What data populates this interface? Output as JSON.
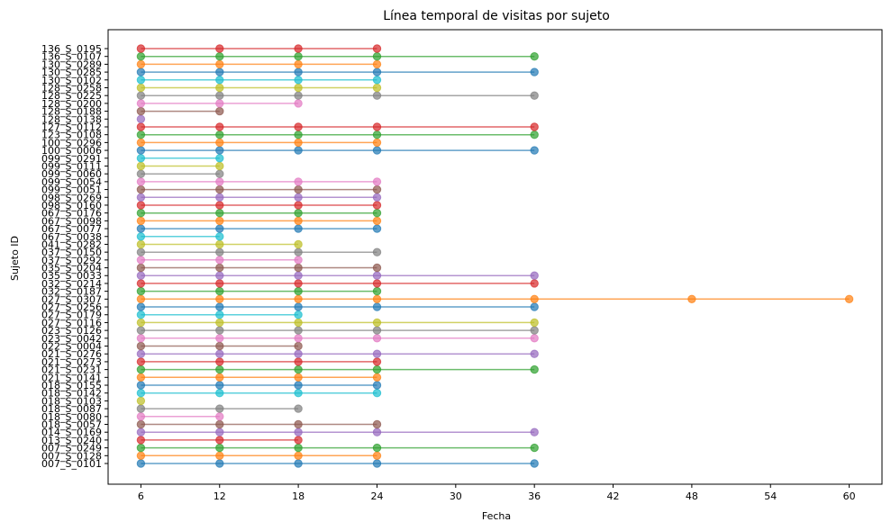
{
  "chart_data": {
    "type": "line",
    "title": "Línea temporal de visitas por sujeto",
    "xlabel": "Fecha",
    "ylabel": "Sujeto ID",
    "x_ticks": [
      6,
      12,
      18,
      24,
      30,
      36,
      42,
      48,
      54,
      60
    ],
    "xlim": [
      3.5,
      62.5
    ],
    "grid": false,
    "legend": "none",
    "colors": [
      "#1f77b4",
      "#ff7f0e",
      "#2ca02c",
      "#d62728",
      "#9467bd",
      "#8c564b",
      "#e377c2",
      "#7f7f7f",
      "#bcbd22",
      "#17becf"
    ],
    "subjects": [
      {
        "id": "007_S_0101",
        "visits": [
          6,
          12,
          18,
          24,
          36
        ]
      },
      {
        "id": "007_S_0128",
        "visits": [
          6,
          12,
          18,
          24
        ]
      },
      {
        "id": "007_S_0249",
        "visits": [
          6,
          12,
          18,
          24,
          36
        ]
      },
      {
        "id": "013_S_0240",
        "visits": [
          6,
          12,
          18
        ]
      },
      {
        "id": "014_S_0169",
        "visits": [
          6,
          12,
          18,
          24,
          36
        ]
      },
      {
        "id": "018_S_0057",
        "visits": [
          6,
          12,
          18,
          24
        ]
      },
      {
        "id": "018_S_0080",
        "visits": [
          6,
          12
        ]
      },
      {
        "id": "018_S_0087",
        "visits": [
          6,
          12,
          18
        ]
      },
      {
        "id": "018_S_0103",
        "visits": [
          6
        ]
      },
      {
        "id": "018_S_0142",
        "visits": [
          6,
          12,
          18,
          24
        ]
      },
      {
        "id": "018_S_0155",
        "visits": [
          6,
          12,
          18,
          24
        ]
      },
      {
        "id": "021_S_0141",
        "visits": [
          6,
          12,
          18,
          24
        ]
      },
      {
        "id": "021_S_0231",
        "visits": [
          6,
          12,
          18,
          24,
          36
        ]
      },
      {
        "id": "021_S_0273",
        "visits": [
          6,
          12,
          18,
          24
        ]
      },
      {
        "id": "021_S_0276",
        "visits": [
          6,
          12,
          18,
          24,
          36
        ]
      },
      {
        "id": "022_S_0004",
        "visits": [
          6,
          12,
          18
        ]
      },
      {
        "id": "023_S_0042",
        "visits": [
          6,
          12,
          18,
          24,
          36
        ]
      },
      {
        "id": "023_S_0126",
        "visits": [
          6,
          12,
          18,
          24,
          36
        ]
      },
      {
        "id": "027_S_0116",
        "visits": [
          6,
          12,
          18,
          24,
          36
        ]
      },
      {
        "id": "027_S_0179",
        "visits": [
          6,
          12,
          18
        ]
      },
      {
        "id": "027_S_0256",
        "visits": [
          6,
          12,
          18,
          24,
          36
        ]
      },
      {
        "id": "027_S_0307",
        "visits": [
          6,
          12,
          18,
          24,
          36,
          48,
          60
        ]
      },
      {
        "id": "032_S_0187",
        "visits": [
          6,
          12,
          18,
          24
        ]
      },
      {
        "id": "032_S_0214",
        "visits": [
          6,
          12,
          18,
          24,
          36
        ]
      },
      {
        "id": "035_S_0033",
        "visits": [
          6,
          12,
          18,
          24,
          36
        ]
      },
      {
        "id": "035_S_0204",
        "visits": [
          6,
          12,
          18,
          24
        ]
      },
      {
        "id": "037_S_0292",
        "visits": [
          6,
          12,
          18
        ]
      },
      {
        "id": "037_S_0150",
        "visits": [
          6,
          12,
          18,
          24
        ]
      },
      {
        "id": "041_S_0282",
        "visits": [
          6,
          12,
          18
        ]
      },
      {
        "id": "067_S_0038",
        "visits": [
          6,
          12
        ]
      },
      {
        "id": "067_S_0077",
        "visits": [
          6,
          12,
          18,
          24
        ]
      },
      {
        "id": "067_S_0098",
        "visits": [
          6,
          12,
          18,
          24
        ]
      },
      {
        "id": "067_S_0176",
        "visits": [
          6,
          12,
          18,
          24
        ]
      },
      {
        "id": "098_S_0160",
        "visits": [
          6,
          12,
          18,
          24
        ]
      },
      {
        "id": "098_S_0269",
        "visits": [
          6,
          12,
          18,
          24
        ]
      },
      {
        "id": "099_S_0051",
        "visits": [
          6,
          12,
          18,
          24
        ]
      },
      {
        "id": "099_S_0054",
        "visits": [
          6,
          12,
          18,
          24
        ]
      },
      {
        "id": "099_S_0060",
        "visits": [
          6,
          12
        ]
      },
      {
        "id": "099_S_0111",
        "visits": [
          6,
          12
        ]
      },
      {
        "id": "099_S_0291",
        "visits": [
          6,
          12
        ]
      },
      {
        "id": "100_S_0006",
        "visits": [
          6,
          12,
          18,
          24,
          36
        ]
      },
      {
        "id": "100_S_0296",
        "visits": [
          6,
          12,
          18,
          24
        ]
      },
      {
        "id": "123_S_0108",
        "visits": [
          6,
          12,
          18,
          24,
          36
        ]
      },
      {
        "id": "127_S_0112",
        "visits": [
          6,
          12,
          18,
          24,
          36
        ]
      },
      {
        "id": "128_S_0138",
        "visits": [
          6
        ]
      },
      {
        "id": "128_S_0188",
        "visits": [
          6,
          12
        ]
      },
      {
        "id": "128_S_0200",
        "visits": [
          6,
          12,
          18
        ]
      },
      {
        "id": "128_S_0225",
        "visits": [
          6,
          12,
          18,
          24,
          36
        ]
      },
      {
        "id": "128_S_0258",
        "visits": [
          6,
          12,
          18,
          24
        ]
      },
      {
        "id": "130_S_0102",
        "visits": [
          6,
          12,
          18,
          24
        ]
      },
      {
        "id": "130_S_0285",
        "visits": [
          6,
          12,
          18,
          24,
          36
        ]
      },
      {
        "id": "130_S_0289",
        "visits": [
          6,
          12,
          18,
          24
        ]
      },
      {
        "id": "136_S_0107",
        "visits": [
          6,
          12,
          18,
          24,
          36
        ]
      },
      {
        "id": "136_S_0195",
        "visits": [
          6,
          12,
          18,
          24
        ]
      }
    ]
  }
}
